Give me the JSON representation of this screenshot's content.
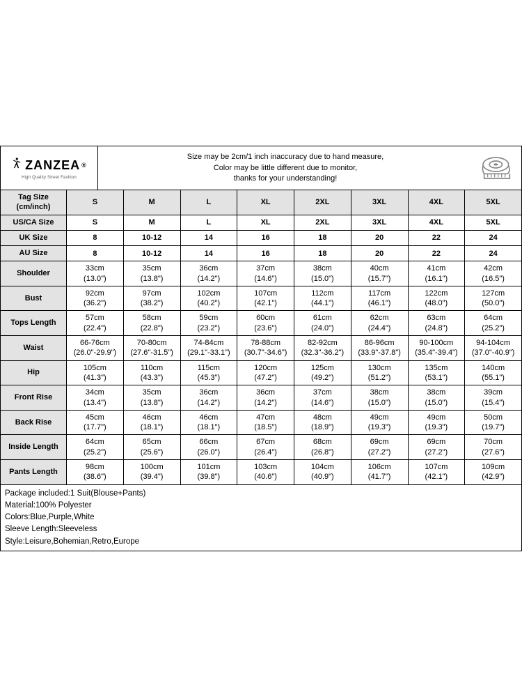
{
  "brand": {
    "name": "ZANZEA",
    "tagline": "High Quality Street Fashion"
  },
  "note": {
    "line1": "Size may be 2cm/1 inch inaccuracy due to hand measure,",
    "line2": "Color may be little different due to monitor,",
    "line3": "thanks for your understanding!"
  },
  "sizes": [
    "S",
    "M",
    "L",
    "XL",
    "2XL",
    "3XL",
    "4XL",
    "5XL"
  ],
  "labels": {
    "tag": "Tag Size (cm/inch)",
    "us": "US/CA Size",
    "uk": "UK Size",
    "au": "AU Size"
  },
  "us_row": [
    "S",
    "M",
    "L",
    "XL",
    "2XL",
    "3XL",
    "4XL",
    "5XL"
  ],
  "uk_row": [
    "8",
    "10-12",
    "14",
    "16",
    "18",
    "20",
    "22",
    "24"
  ],
  "au_row": [
    "8",
    "10-12",
    "14",
    "16",
    "18",
    "20",
    "22",
    "24"
  ],
  "measure_rows": [
    {
      "label": "Shoulder",
      "cm": [
        "33cm",
        "35cm",
        "36cm",
        "37cm",
        "38cm",
        "40cm",
        "41cm",
        "42cm"
      ],
      "in": [
        "(13.0\")",
        "(13.8\")",
        "(14.2\")",
        "(14.6\")",
        "(15.0\")",
        "(15.7\")",
        "(16.1\")",
        "(16.5\")"
      ]
    },
    {
      "label": "Bust",
      "cm": [
        "92cm",
        "97cm",
        "102cm",
        "107cm",
        "112cm",
        "117cm",
        "122cm",
        "127cm"
      ],
      "in": [
        "(36.2\")",
        "(38.2\")",
        "(40.2\")",
        "(42.1\")",
        "(44.1\")",
        "(46.1\")",
        "(48.0\")",
        "(50.0\")"
      ]
    },
    {
      "label": "Tops Length",
      "cm": [
        "57cm",
        "58cm",
        "59cm",
        "60cm",
        "61cm",
        "62cm",
        "63cm",
        "64cm"
      ],
      "in": [
        "(22.4\")",
        "(22.8\")",
        "(23.2\")",
        "(23.6\")",
        "(24.0\")",
        "(24.4\")",
        "(24.8\")",
        "(25.2\")"
      ]
    },
    {
      "label": "Waist",
      "cm": [
        "66-76cm",
        "70-80cm",
        "74-84cm",
        "78-88cm",
        "82-92cm",
        "86-96cm",
        "90-100cm",
        "94-104cm"
      ],
      "in": [
        "(26.0\"-29.9\")",
        "(27.6\"-31.5\")",
        "(29.1\"-33.1\")",
        "(30.7\"-34.6\")",
        "(32.3\"-36.2\")",
        "(33.9\"-37.8\")",
        "(35.4\"-39.4\")",
        "(37.0\"-40.9\")"
      ]
    },
    {
      "label": "Hip",
      "cm": [
        "105cm",
        "110cm",
        "115cm",
        "120cm",
        "125cm",
        "130cm",
        "135cm",
        "140cm"
      ],
      "in": [
        "(41.3\")",
        "(43.3\")",
        "(45.3\")",
        "(47.2\")",
        "(49.2\")",
        "(51.2\")",
        "(53.1\")",
        "(55.1\")"
      ]
    },
    {
      "label": "Front Rise",
      "cm": [
        "34cm",
        "35cm",
        "36cm",
        "36cm",
        "37cm",
        "38cm",
        "38cm",
        "39cm"
      ],
      "in": [
        "(13.4\")",
        "(13.8\")",
        "(14.2\")",
        "(14.2\")",
        "(14.6\")",
        "(15.0\")",
        "(15.0\")",
        "(15.4\")"
      ]
    },
    {
      "label": "Back Rise",
      "cm": [
        "45cm",
        "46cm",
        "46cm",
        "47cm",
        "48cm",
        "49cm",
        "49cm",
        "50cm"
      ],
      "in": [
        "(17.7\")",
        "(18.1\")",
        "(18.1\")",
        "(18.5\")",
        "(18.9\")",
        "(19.3\")",
        "(19.3\")",
        "(19.7\")"
      ]
    },
    {
      "label": "Inside Length",
      "cm": [
        "64cm",
        "65cm",
        "66cm",
        "67cm",
        "68cm",
        "69cm",
        "69cm",
        "70cm"
      ],
      "in": [
        "(25.2\")",
        "(25.6\")",
        "(26.0\")",
        "(26.4\")",
        "(26.8\")",
        "(27.2\")",
        "(27.2\")",
        "(27.6\")"
      ]
    },
    {
      "label": "Pants Length",
      "cm": [
        "98cm",
        "100cm",
        "101cm",
        "103cm",
        "104cm",
        "106cm",
        "107cm",
        "109cm"
      ],
      "in": [
        "(38.6\")",
        "(39.4\")",
        "(39.8\")",
        "(40.6\")",
        "(40.9\")",
        "(41.7\")",
        "(42.1\")",
        "(42.9\")"
      ]
    }
  ],
  "info": [
    "Package included:1 Suit(Blouse+Pants)",
    "Material:100% Polyester",
    "Colors:Blue,Purple,White",
    "Sleeve Length:Sleeveless",
    "Style:Leisure,Bohemian,Retro,Europe"
  ],
  "style": {
    "header_bg": "#e3e3e3",
    "border_color": "#000000",
    "background": "#ffffff",
    "font_size_body": 11,
    "font_size_brand": 18
  }
}
